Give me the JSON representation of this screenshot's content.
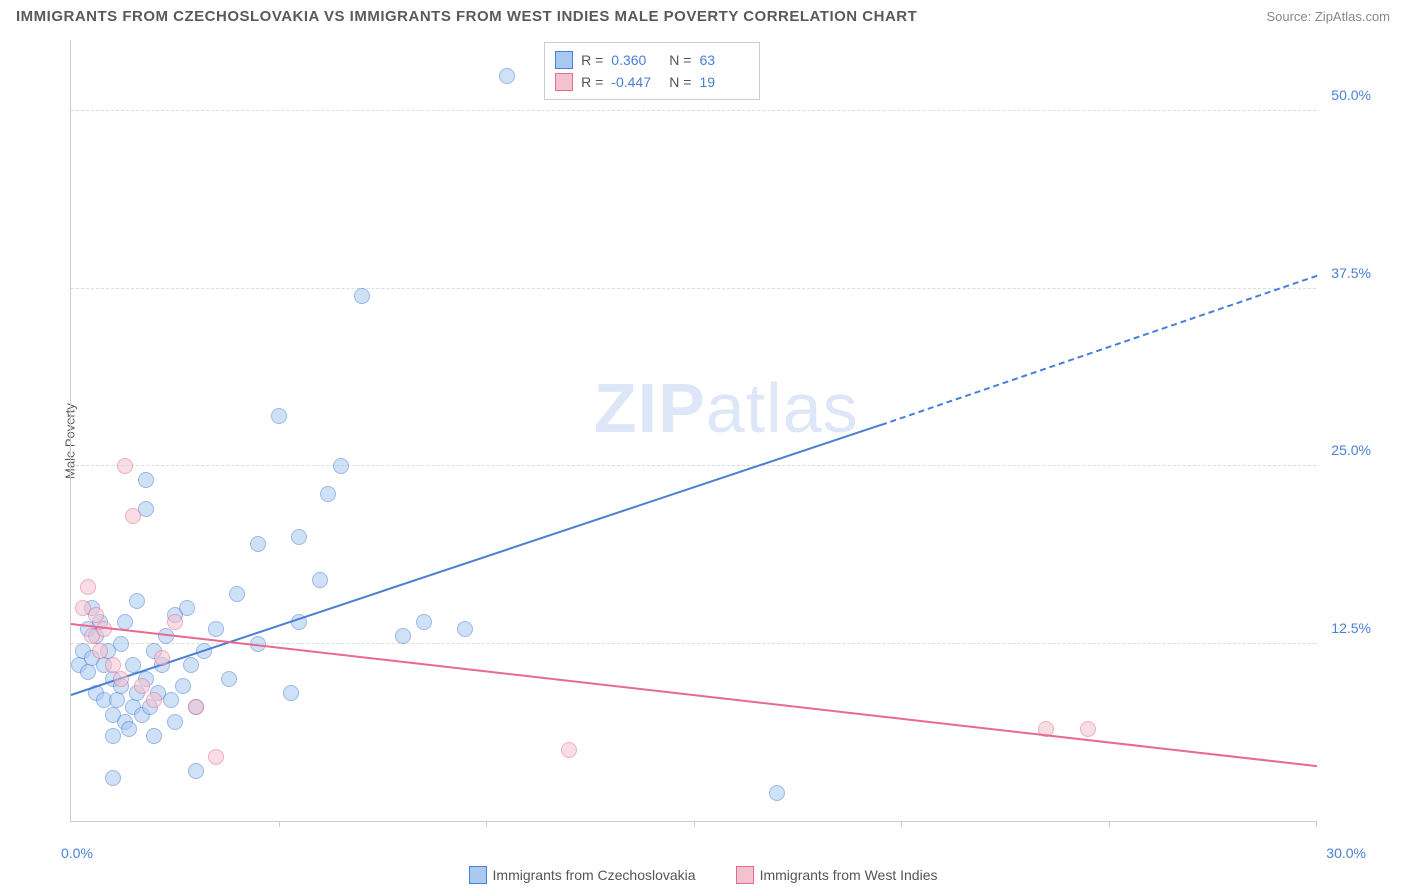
{
  "header": {
    "title": "IMMIGRANTS FROM CZECHOSLOVAKIA VS IMMIGRANTS FROM WEST INDIES MALE POVERTY CORRELATION CHART",
    "source": "Source: ZipAtlas.com"
  },
  "chart": {
    "type": "scatter",
    "ylabel": "Male Poverty",
    "xlim": [
      0,
      30
    ],
    "ylim": [
      0,
      55
    ],
    "background_color": "#ffffff",
    "grid_color": "#dddddd",
    "axis_color": "#cccccc",
    "tick_color": "#4a7fd8",
    "tick_fontsize": 14,
    "label_fontsize": 13,
    "marker_radius": 8,
    "marker_opacity": 0.55,
    "yticks": [
      {
        "value": 12.5,
        "label": "12.5%"
      },
      {
        "value": 25.0,
        "label": "25.0%"
      },
      {
        "value": 37.5,
        "label": "37.5%"
      },
      {
        "value": 50.0,
        "label": "50.0%"
      }
    ],
    "xticks_minor": [
      5,
      10,
      15,
      20,
      25,
      30
    ],
    "xtick_labels": [
      {
        "value": 0,
        "label": "0.0%"
      },
      {
        "value": 30,
        "label": "30.0%"
      }
    ],
    "watermark": {
      "text_bold": "ZIP",
      "text_rest": "atlas"
    },
    "series": [
      {
        "key": "czech",
        "label": "Immigrants from Czechoslovakia",
        "color_fill": "#a9c9f0",
        "color_stroke": "#4a7fd8",
        "r_value": "0.360",
        "n_value": "63",
        "trend": {
          "x1": 0,
          "y1": 9.0,
          "x2_solid": 19.5,
          "y2_solid": 28.0,
          "x2_dash": 30,
          "y2_dash": 38.5,
          "line_width": 2
        },
        "points": [
          [
            0.2,
            11.0
          ],
          [
            0.3,
            12.0
          ],
          [
            0.4,
            10.5
          ],
          [
            0.4,
            13.5
          ],
          [
            0.5,
            15.0
          ],
          [
            0.5,
            11.5
          ],
          [
            0.6,
            13.0
          ],
          [
            0.6,
            9.0
          ],
          [
            0.7,
            14.0
          ],
          [
            0.8,
            11.0
          ],
          [
            0.8,
            8.5
          ],
          [
            0.9,
            12.0
          ],
          [
            1.0,
            10.0
          ],
          [
            1.0,
            7.5
          ],
          [
            1.0,
            6.0
          ],
          [
            1.1,
            8.5
          ],
          [
            1.2,
            9.5
          ],
          [
            1.2,
            12.5
          ],
          [
            1.3,
            7.0
          ],
          [
            1.3,
            14.0
          ],
          [
            1.4,
            6.5
          ],
          [
            1.5,
            8.0
          ],
          [
            1.5,
            11.0
          ],
          [
            1.6,
            15.5
          ],
          [
            1.6,
            9.0
          ],
          [
            1.7,
            7.5
          ],
          [
            1.8,
            10.0
          ],
          [
            1.8,
            24.0
          ],
          [
            1.9,
            8.0
          ],
          [
            2.0,
            12.0
          ],
          [
            2.0,
            6.0
          ],
          [
            2.1,
            9.0
          ],
          [
            1.0,
            3.0
          ],
          [
            2.2,
            11.0
          ],
          [
            2.3,
            13.0
          ],
          [
            2.4,
            8.5
          ],
          [
            2.5,
            14.5
          ],
          [
            2.5,
            7.0
          ],
          [
            1.8,
            22.0
          ],
          [
            2.7,
            9.5
          ],
          [
            2.8,
            15.0
          ],
          [
            2.9,
            11.0
          ],
          [
            3.0,
            8.0
          ],
          [
            3.0,
            3.5
          ],
          [
            3.2,
            12.0
          ],
          [
            3.5,
            13.5
          ],
          [
            3.8,
            10.0
          ],
          [
            4.0,
            16.0
          ],
          [
            4.5,
            19.5
          ],
          [
            4.5,
            12.5
          ],
          [
            5.0,
            28.5
          ],
          [
            5.5,
            14.0
          ],
          [
            5.5,
            20.0
          ],
          [
            6.0,
            17.0
          ],
          [
            6.2,
            23.0
          ],
          [
            6.5,
            25.0
          ],
          [
            7.0,
            37.0
          ],
          [
            8.0,
            13.0
          ],
          [
            8.5,
            14.0
          ],
          [
            9.5,
            13.5
          ],
          [
            10.5,
            52.5
          ],
          [
            17.0,
            2.0
          ],
          [
            5.3,
            9.0
          ]
        ]
      },
      {
        "key": "windies",
        "label": "Immigrants from West Indies",
        "color_fill": "#f4c2cf",
        "color_stroke": "#e86a8e",
        "r_value": "-0.447",
        "n_value": "19",
        "trend": {
          "x1": 0,
          "y1": 14.0,
          "x2_solid": 30,
          "y2_solid": 4.0,
          "x2_dash": 30,
          "y2_dash": 4.0,
          "line_width": 2
        },
        "points": [
          [
            0.3,
            15.0
          ],
          [
            0.4,
            16.5
          ],
          [
            0.5,
            13.0
          ],
          [
            0.6,
            14.5
          ],
          [
            0.7,
            12.0
          ],
          [
            0.8,
            13.5
          ],
          [
            1.0,
            11.0
          ],
          [
            1.2,
            10.0
          ],
          [
            1.3,
            25.0
          ],
          [
            1.5,
            21.5
          ],
          [
            1.7,
            9.5
          ],
          [
            2.0,
            8.5
          ],
          [
            2.2,
            11.5
          ],
          [
            2.5,
            14.0
          ],
          [
            3.0,
            8.0
          ],
          [
            3.5,
            4.5
          ],
          [
            12.0,
            5.0
          ],
          [
            23.5,
            6.5
          ],
          [
            24.5,
            6.5
          ]
        ]
      }
    ]
  },
  "legend_top": {
    "r_label": "R =",
    "n_label": "N ="
  }
}
